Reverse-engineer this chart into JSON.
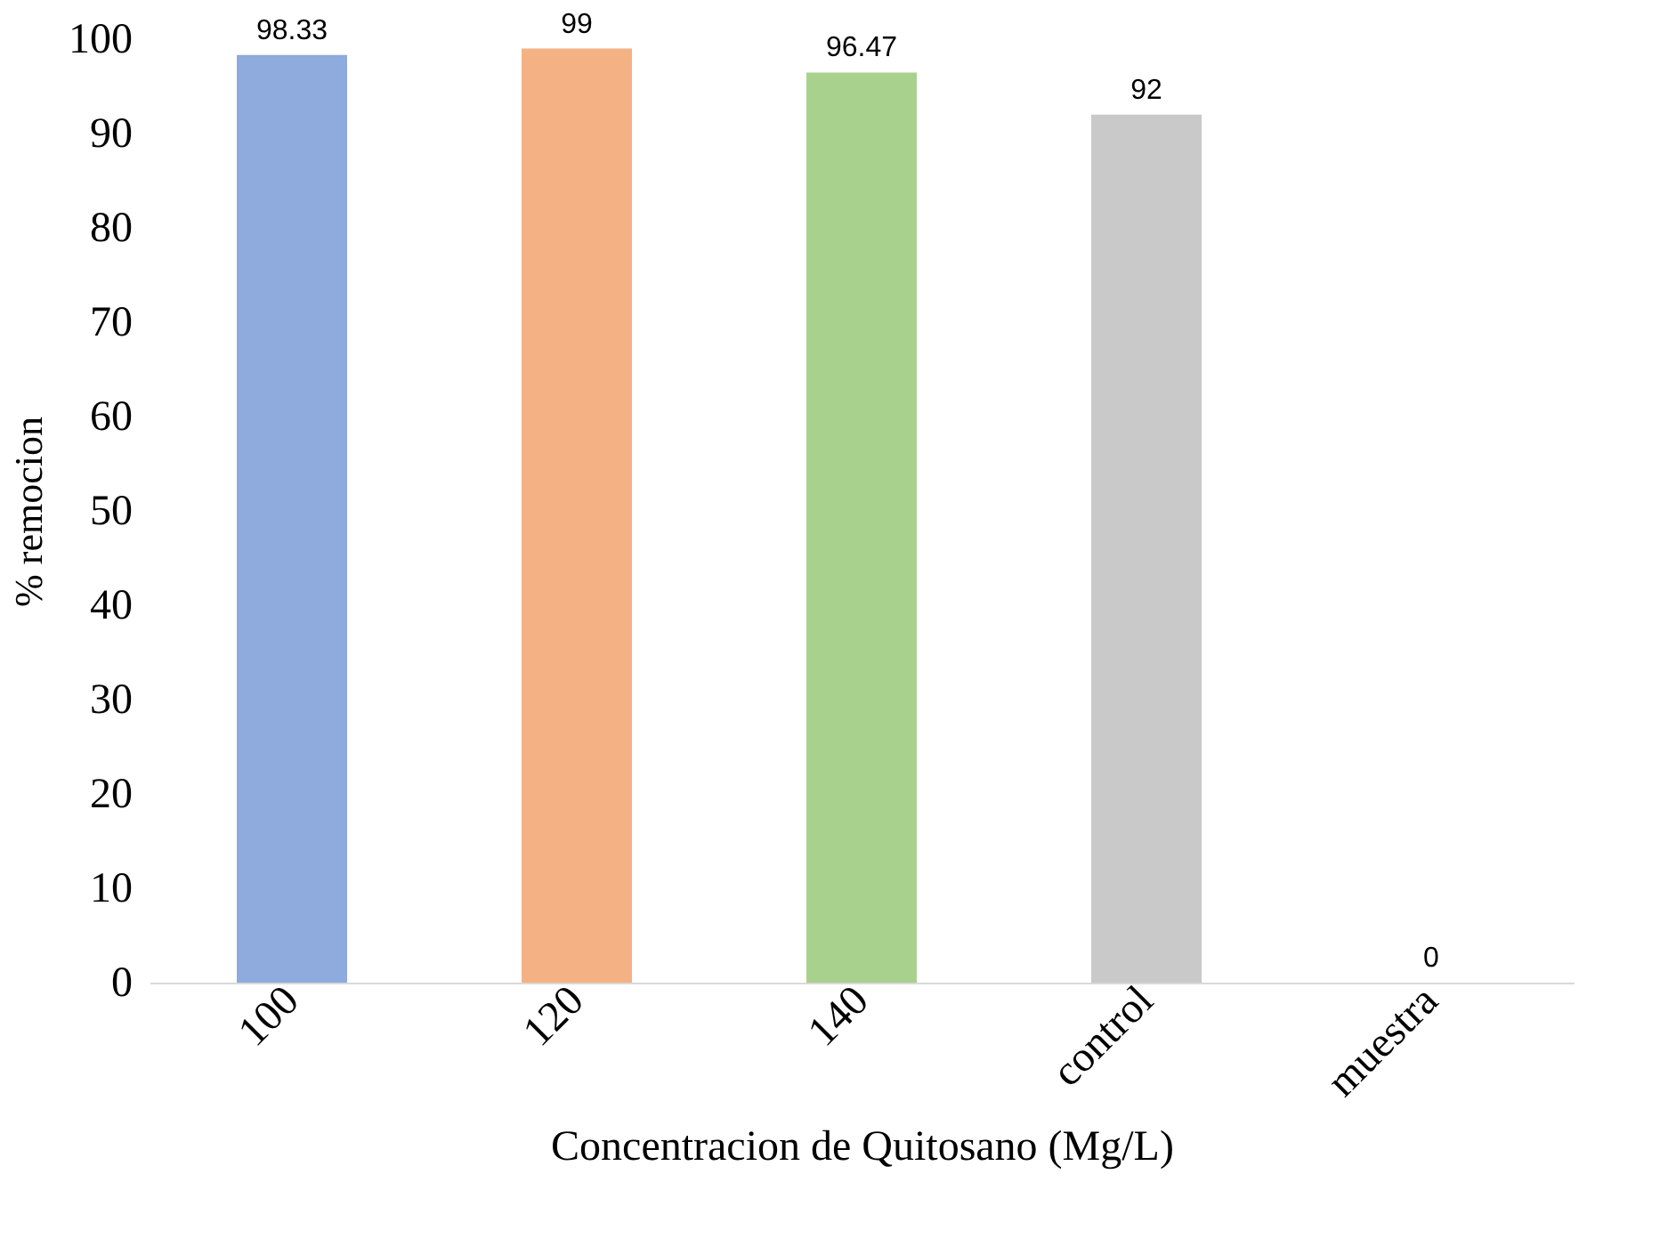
{
  "chart_data": {
    "type": "bar",
    "xlabel": "Concentracion de Quitosano (Mg/L)",
    "ylabel": "% remocion",
    "categories": [
      "100",
      "120",
      "140",
      "control",
      "muestra"
    ],
    "values": [
      98.33,
      99,
      96.47,
      92,
      0
    ],
    "colors": [
      "#8faadc",
      "#f4b183",
      "#a9d18e",
      "#c9c9c9",
      "#ffd966"
    ],
    "ylim": [
      0,
      100
    ],
    "yticks": [
      0,
      10,
      20,
      30,
      40,
      50,
      60,
      70,
      80,
      90,
      100
    ],
    "data_labels": true,
    "grid": false
  }
}
